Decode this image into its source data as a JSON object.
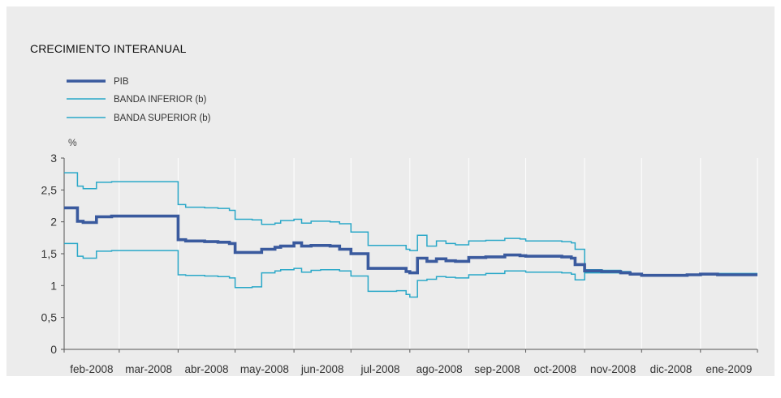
{
  "chart_data": {
    "type": "line",
    "title": "CRECIMIENTO INTERANUAL",
    "ylabel": "%",
    "ylim": [
      0,
      3
    ],
    "yticks": [
      "0",
      "0,5",
      "1",
      "1,5",
      "2",
      "2,5",
      "3"
    ],
    "xlim": [
      "2008-02-01",
      "2009-01-31"
    ],
    "x_tick_labels": [
      "feb-2008",
      "mar-2008",
      "abr-2008",
      "may-2008",
      "jun-2008",
      "jul-2008",
      "ago-2008",
      "sep-2008",
      "oct-2008",
      "nov-2008",
      "dic-2008",
      "ene-2009"
    ],
    "x_tick_dates": [
      "2008-02-01",
      "2008-03-01",
      "2008-04-01",
      "2008-05-01",
      "2008-06-01",
      "2008-07-01",
      "2008-08-01",
      "2008-09-01",
      "2008-10-01",
      "2008-11-01",
      "2008-12-01",
      "2009-01-01",
      "2009-01-31"
    ],
    "grid": "vertical",
    "legend_position": "top-left",
    "series": [
      {
        "name": "PIB",
        "color": "#3a5a9e",
        "x": [
          "2008-02-01",
          "2008-02-07",
          "2008-02-08",
          "2008-02-10",
          "2008-02-11",
          "2008-02-18",
          "2008-02-26",
          "2008-03-01",
          "2008-03-06",
          "2008-03-15",
          "2008-03-22",
          "2008-03-25",
          "2008-04-01",
          "2008-04-05",
          "2008-04-10",
          "2008-04-12",
          "2008-04-15",
          "2008-04-22",
          "2008-04-28",
          "2008-05-01",
          "2008-05-05",
          "2008-05-10",
          "2008-05-15",
          "2008-05-22",
          "2008-05-25",
          "2008-06-01",
          "2008-06-05",
          "2008-06-10",
          "2008-06-15",
          "2008-06-20",
          "2008-06-25",
          "2008-07-01",
          "2008-07-10",
          "2008-07-20",
          "2008-07-25",
          "2008-07-28",
          "2008-07-30",
          "2008-08-01",
          "2008-08-05",
          "2008-08-10",
          "2008-08-15",
          "2008-08-20",
          "2008-08-25",
          "2008-09-01",
          "2008-09-10",
          "2008-09-20",
          "2008-09-28",
          "2008-10-01",
          "2008-10-10",
          "2008-10-20",
          "2008-10-25",
          "2008-10-27",
          "2008-11-01",
          "2008-11-10",
          "2008-11-20",
          "2008-11-25",
          "2008-12-01",
          "2008-12-10",
          "2008-12-20",
          "2008-12-25",
          "2009-01-01",
          "2009-01-10",
          "2009-01-20",
          "2009-01-31"
        ],
        "values": [
          2.22,
          2.22,
          2.01,
          2.01,
          1.99,
          2.08,
          2.09,
          2.09,
          2.09,
          2.09,
          2.09,
          2.09,
          1.72,
          1.7,
          1.7,
          1.7,
          1.69,
          1.68,
          1.66,
          1.52,
          1.52,
          1.52,
          1.57,
          1.6,
          1.62,
          1.67,
          1.62,
          1.63,
          1.63,
          1.62,
          1.57,
          1.5,
          1.27,
          1.27,
          1.27,
          1.27,
          1.22,
          1.2,
          1.43,
          1.38,
          1.42,
          1.39,
          1.38,
          1.44,
          1.45,
          1.48,
          1.47,
          1.46,
          1.46,
          1.45,
          1.43,
          1.33,
          1.23,
          1.22,
          1.2,
          1.18,
          1.16,
          1.16,
          1.16,
          1.17,
          1.18,
          1.17,
          1.17,
          1.17
        ]
      },
      {
        "name": "BANDA INFERIOR (b)",
        "color": "#2aa8c8",
        "x": [
          "2008-02-01",
          "2008-02-07",
          "2008-02-08",
          "2008-02-10",
          "2008-02-11",
          "2008-02-18",
          "2008-02-26",
          "2008-03-01",
          "2008-03-06",
          "2008-03-15",
          "2008-03-22",
          "2008-03-25",
          "2008-04-01",
          "2008-04-05",
          "2008-04-10",
          "2008-04-12",
          "2008-04-15",
          "2008-04-22",
          "2008-04-28",
          "2008-05-01",
          "2008-05-05",
          "2008-05-10",
          "2008-05-15",
          "2008-05-22",
          "2008-05-25",
          "2008-06-01",
          "2008-06-05",
          "2008-06-10",
          "2008-06-15",
          "2008-06-20",
          "2008-06-25",
          "2008-07-01",
          "2008-07-10",
          "2008-07-20",
          "2008-07-25",
          "2008-07-28",
          "2008-07-30",
          "2008-08-01",
          "2008-08-05",
          "2008-08-10",
          "2008-08-15",
          "2008-08-20",
          "2008-08-25",
          "2008-09-01",
          "2008-09-10",
          "2008-09-20",
          "2008-09-28",
          "2008-10-01",
          "2008-10-10",
          "2008-10-20",
          "2008-10-25",
          "2008-10-27",
          "2008-11-01",
          "2008-11-10",
          "2008-11-20",
          "2008-11-25",
          "2008-12-01",
          "2008-12-10",
          "2008-12-20",
          "2008-12-25",
          "2009-01-01",
          "2009-01-10",
          "2009-01-20",
          "2009-01-31"
        ],
        "values": [
          1.66,
          1.66,
          1.46,
          1.46,
          1.43,
          1.54,
          1.55,
          1.55,
          1.55,
          1.55,
          1.55,
          1.55,
          1.17,
          1.16,
          1.16,
          1.16,
          1.15,
          1.14,
          1.12,
          0.97,
          0.97,
          0.98,
          1.2,
          1.23,
          1.25,
          1.27,
          1.21,
          1.24,
          1.25,
          1.25,
          1.23,
          1.15,
          0.91,
          0.91,
          0.92,
          0.92,
          0.86,
          0.82,
          1.08,
          1.1,
          1.14,
          1.13,
          1.12,
          1.17,
          1.19,
          1.23,
          1.23,
          1.21,
          1.21,
          1.2,
          1.18,
          1.09,
          1.2,
          1.2,
          1.19,
          1.17,
          1.15,
          1.15,
          1.15,
          1.16,
          1.17,
          1.16,
          1.16,
          1.16
        ]
      },
      {
        "name": "BANDA SUPERIOR (b)",
        "color": "#2aa8c8",
        "x": [
          "2008-02-01",
          "2008-02-07",
          "2008-02-08",
          "2008-02-10",
          "2008-02-11",
          "2008-02-18",
          "2008-02-26",
          "2008-03-01",
          "2008-03-06",
          "2008-03-15",
          "2008-03-22",
          "2008-03-25",
          "2008-04-01",
          "2008-04-05",
          "2008-04-10",
          "2008-04-12",
          "2008-04-15",
          "2008-04-22",
          "2008-04-28",
          "2008-05-01",
          "2008-05-05",
          "2008-05-10",
          "2008-05-15",
          "2008-05-22",
          "2008-05-25",
          "2008-06-01",
          "2008-06-05",
          "2008-06-10",
          "2008-06-15",
          "2008-06-20",
          "2008-06-25",
          "2008-07-01",
          "2008-07-10",
          "2008-07-20",
          "2008-07-25",
          "2008-07-28",
          "2008-07-30",
          "2008-08-01",
          "2008-08-05",
          "2008-08-10",
          "2008-08-15",
          "2008-08-20",
          "2008-08-25",
          "2008-09-01",
          "2008-09-10",
          "2008-09-20",
          "2008-09-28",
          "2008-10-01",
          "2008-10-10",
          "2008-10-20",
          "2008-10-25",
          "2008-10-27",
          "2008-11-01",
          "2008-11-10",
          "2008-11-20",
          "2008-11-25",
          "2008-12-01",
          "2008-12-10",
          "2008-12-20",
          "2008-12-25",
          "2009-01-01",
          "2009-01-10",
          "2009-01-20",
          "2009-01-31"
        ],
        "values": [
          2.77,
          2.77,
          2.56,
          2.56,
          2.52,
          2.62,
          2.63,
          2.63,
          2.63,
          2.63,
          2.63,
          2.63,
          2.27,
          2.23,
          2.23,
          2.23,
          2.22,
          2.21,
          2.18,
          2.04,
          2.04,
          2.03,
          1.96,
          1.98,
          2.02,
          2.04,
          1.98,
          2.01,
          2.01,
          2.0,
          1.97,
          1.84,
          1.63,
          1.63,
          1.63,
          1.63,
          1.57,
          1.55,
          1.79,
          1.62,
          1.7,
          1.66,
          1.64,
          1.7,
          1.71,
          1.74,
          1.73,
          1.7,
          1.7,
          1.69,
          1.67,
          1.57,
          1.25,
          1.24,
          1.22,
          1.19,
          1.17,
          1.17,
          1.17,
          1.18,
          1.19,
          1.19,
          1.19,
          1.19
        ]
      }
    ]
  }
}
